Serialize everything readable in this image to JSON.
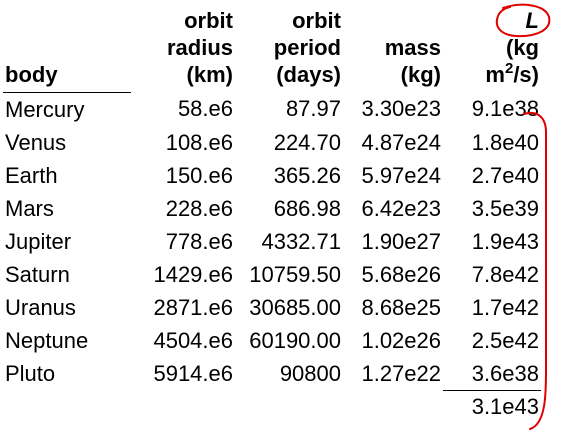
{
  "headers": {
    "body": "body",
    "radius": [
      "orbit",
      "radius",
      "(km)"
    ],
    "period": [
      "orbit",
      "period",
      "(days)"
    ],
    "mass": [
      "mass",
      "(kg)"
    ],
    "L": {
      "symbol": "L",
      "unit_open": "(kg",
      "unit_m": "m",
      "unit_exp": "2",
      "unit_close": "/s)"
    }
  },
  "rows": [
    {
      "body": "Mercury",
      "radius": "58.e6",
      "period": "87.97",
      "mass": "3.30e23",
      "L": "9.1e38"
    },
    {
      "body": "Venus",
      "radius": "108.e6",
      "period": "224.70",
      "mass": "4.87e24",
      "L": "1.8e40"
    },
    {
      "body": "Earth",
      "radius": "150.e6",
      "period": "365.26",
      "mass": "5.97e24",
      "L": "2.7e40"
    },
    {
      "body": "Mars",
      "radius": "228.e6",
      "period": "686.98",
      "mass": "6.42e23",
      "L": "3.5e39"
    },
    {
      "body": "Jupiter",
      "radius": "778.e6",
      "period": "4332.71",
      "mass": "1.90e27",
      "L": "1.9e43"
    },
    {
      "body": "Saturn",
      "radius": "1429.e6",
      "period": "10759.50",
      "mass": "5.68e26",
      "L": "7.8e42"
    },
    {
      "body": "Uranus",
      "radius": "2871.e6",
      "period": "30685.00",
      "mass": "8.68e25",
      "L": "1.7e42"
    },
    {
      "body": "Neptune",
      "radius": "4504.e6",
      "period": "60190.00",
      "mass": "1.02e26",
      "L": "2.5e42"
    },
    {
      "body": "Pluto",
      "radius": "5914.e6",
      "period": "90800",
      "mass": "1.27e22",
      "L": "3.6e38"
    }
  ],
  "total": {
    "L": "3.1e43"
  },
  "annotations": {
    "ink_color": "#e00000"
  }
}
